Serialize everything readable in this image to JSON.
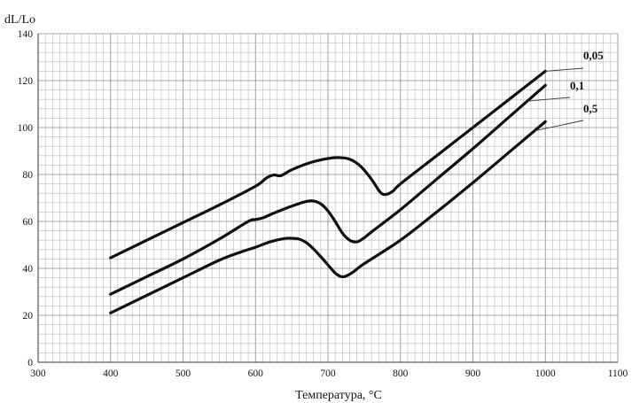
{
  "chart_data": {
    "type": "line",
    "xlabel": "Температура, °С",
    "ylabel": "dL/Lo",
    "xlim": [
      300,
      1100
    ],
    "ylim": [
      0,
      140
    ],
    "x_ticks": [
      "300",
      "400",
      "500",
      "600",
      "700",
      "800",
      "900",
      "1000",
      "1100"
    ],
    "y_ticks": [
      "0",
      "20",
      "40",
      "60",
      "80",
      "100",
      "120",
      "140"
    ],
    "grid": true,
    "series": [
      {
        "name": "0,05",
        "x": [
          400,
          450,
          500,
          550,
          600,
          615,
          625,
          635,
          650,
          675,
          700,
          715,
          730,
          745,
          760,
          772,
          780,
          790,
          800,
          850,
          900,
          950,
          1000
        ],
        "y": [
          44.5,
          52,
          59.5,
          67,
          75,
          78.5,
          79.8,
          79.5,
          82,
          85,
          86.8,
          87.2,
          86.5,
          83.5,
          78,
          72.5,
          71.5,
          73,
          76,
          88,
          100,
          112,
          124
        ]
      },
      {
        "name": "0,1",
        "x": [
          400,
          450,
          500,
          550,
          590,
          600,
          610,
          625,
          650,
          670,
          680,
          690,
          700,
          710,
          720,
          730,
          740,
          750,
          760,
          800,
          850,
          900,
          950,
          1000
        ],
        "y": [
          29,
          36.5,
          44,
          52.5,
          60,
          60.8,
          61.5,
          63.5,
          66.5,
          68.5,
          68.7,
          67.5,
          64.5,
          60,
          55,
          52,
          51.3,
          53,
          55.5,
          65,
          78,
          91,
          104.5,
          118
        ]
      },
      {
        "name": "0,5",
        "x": [
          400,
          450,
          500,
          550,
          580,
          600,
          620,
          640,
          650,
          660,
          670,
          680,
          690,
          700,
          710,
          718,
          725,
          735,
          750,
          800,
          850,
          900,
          950,
          1000
        ],
        "y": [
          21,
          28.5,
          36,
          43.5,
          47,
          49,
          51.3,
          52.7,
          52.8,
          52.5,
          51,
          48.3,
          45,
          41.5,
          38,
          36.5,
          36.7,
          38.5,
          42,
          52,
          64,
          76.5,
          89.5,
          102.5
        ]
      }
    ]
  }
}
